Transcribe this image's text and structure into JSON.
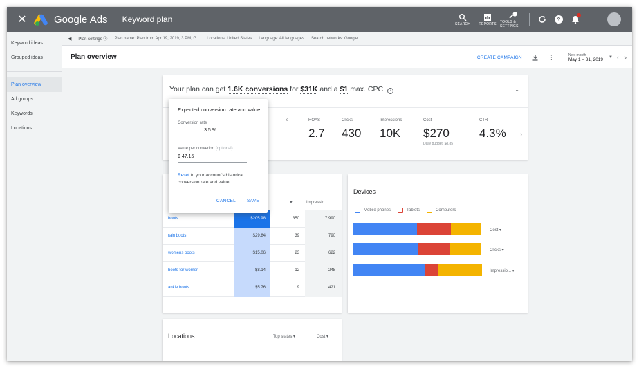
{
  "appbar": {
    "brand": "Google Ads",
    "section": "Keyword plan",
    "tools": [
      "SEARCH",
      "REPORTS",
      "TOOLS & SETTINGS"
    ]
  },
  "sidebar": {
    "items_top": [
      "Keyword ideas",
      "Grouped ideas"
    ],
    "items": [
      "Plan overview",
      "Ad groups",
      "Keywords",
      "Locations"
    ]
  },
  "planbar": {
    "settings": "Plan settings",
    "plan_name": "Plan name: Plan from Apr 19, 2019, 3 PM, G...",
    "locations": "Locations: United States",
    "language": "Language: All languages",
    "networks": "Search networks: Google"
  },
  "overview": {
    "title": "Plan overview",
    "create_campaign": "CREATE CAMPAIGN",
    "date_label": "Next month",
    "date_value": "May 1 – 31, 2019"
  },
  "summary": {
    "headline_pre": "Your plan can get",
    "conversions": "1.6K conversions",
    "for": "for",
    "cost": "$31K",
    "and_a": "and a",
    "cpc": "$1",
    "headline_post": "max. CPC",
    "partial_label": "e",
    "metrics": [
      {
        "label": "ROAS",
        "value": "2.7",
        "sub": ""
      },
      {
        "label": "Clicks",
        "value": "430",
        "sub": ""
      },
      {
        "label": "Impressions",
        "value": "10K",
        "sub": ""
      },
      {
        "label": "Cost",
        "value": "$270",
        "sub": "Daily budget: $8.85"
      },
      {
        "label": "CTR",
        "value": "4.3%",
        "sub": ""
      }
    ]
  },
  "popover": {
    "title": "Expected conversion rate and value",
    "rate_label": "Conversion rate",
    "rate_value": "3.5 %",
    "value_label": "Value per converion",
    "value_optional": "(optional)",
    "value_value": "$ 47.15",
    "reset_link": "Reset",
    "reset_text": "to your account's historical conversion rate and value",
    "cancel": "CANCEL",
    "save": "SAVE"
  },
  "keywords": {
    "header_impressions": "Impressio...",
    "rows": [
      {
        "keyword": "boots",
        "cost": "$205.98",
        "clicks": "350",
        "impressions": "7,990"
      },
      {
        "keyword": "rain boots",
        "cost": "$29.84",
        "clicks": "39",
        "impressions": "790"
      },
      {
        "keyword": "womens boots",
        "cost": "$15.06",
        "clicks": "23",
        "impressions": "622"
      },
      {
        "keyword": "boots for women",
        "cost": "$8.14",
        "clicks": "12",
        "impressions": "248"
      },
      {
        "keyword": "ankle boots",
        "cost": "$5.76",
        "clicks": "9",
        "impressions": "421"
      }
    ]
  },
  "devices": {
    "title": "Devices",
    "legend": [
      "Mobile phones",
      "Tablets",
      "Computers"
    ],
    "colors": {
      "mobile": "#4285f4",
      "tablets": "#db4437",
      "computers": "#f4b400"
    },
    "bars": [
      {
        "label": "Cost",
        "shares": [
          0.49,
          0.26,
          0.23
        ]
      },
      {
        "label": "Clicks",
        "shares": [
          0.5,
          0.24,
          0.24
        ]
      },
      {
        "label": "Impressio...",
        "shares": [
          0.55,
          0.1,
          0.34
        ]
      }
    ]
  },
  "locations": {
    "title": "Locations",
    "dropdown1": "Top states",
    "dropdown2": "Cost"
  }
}
